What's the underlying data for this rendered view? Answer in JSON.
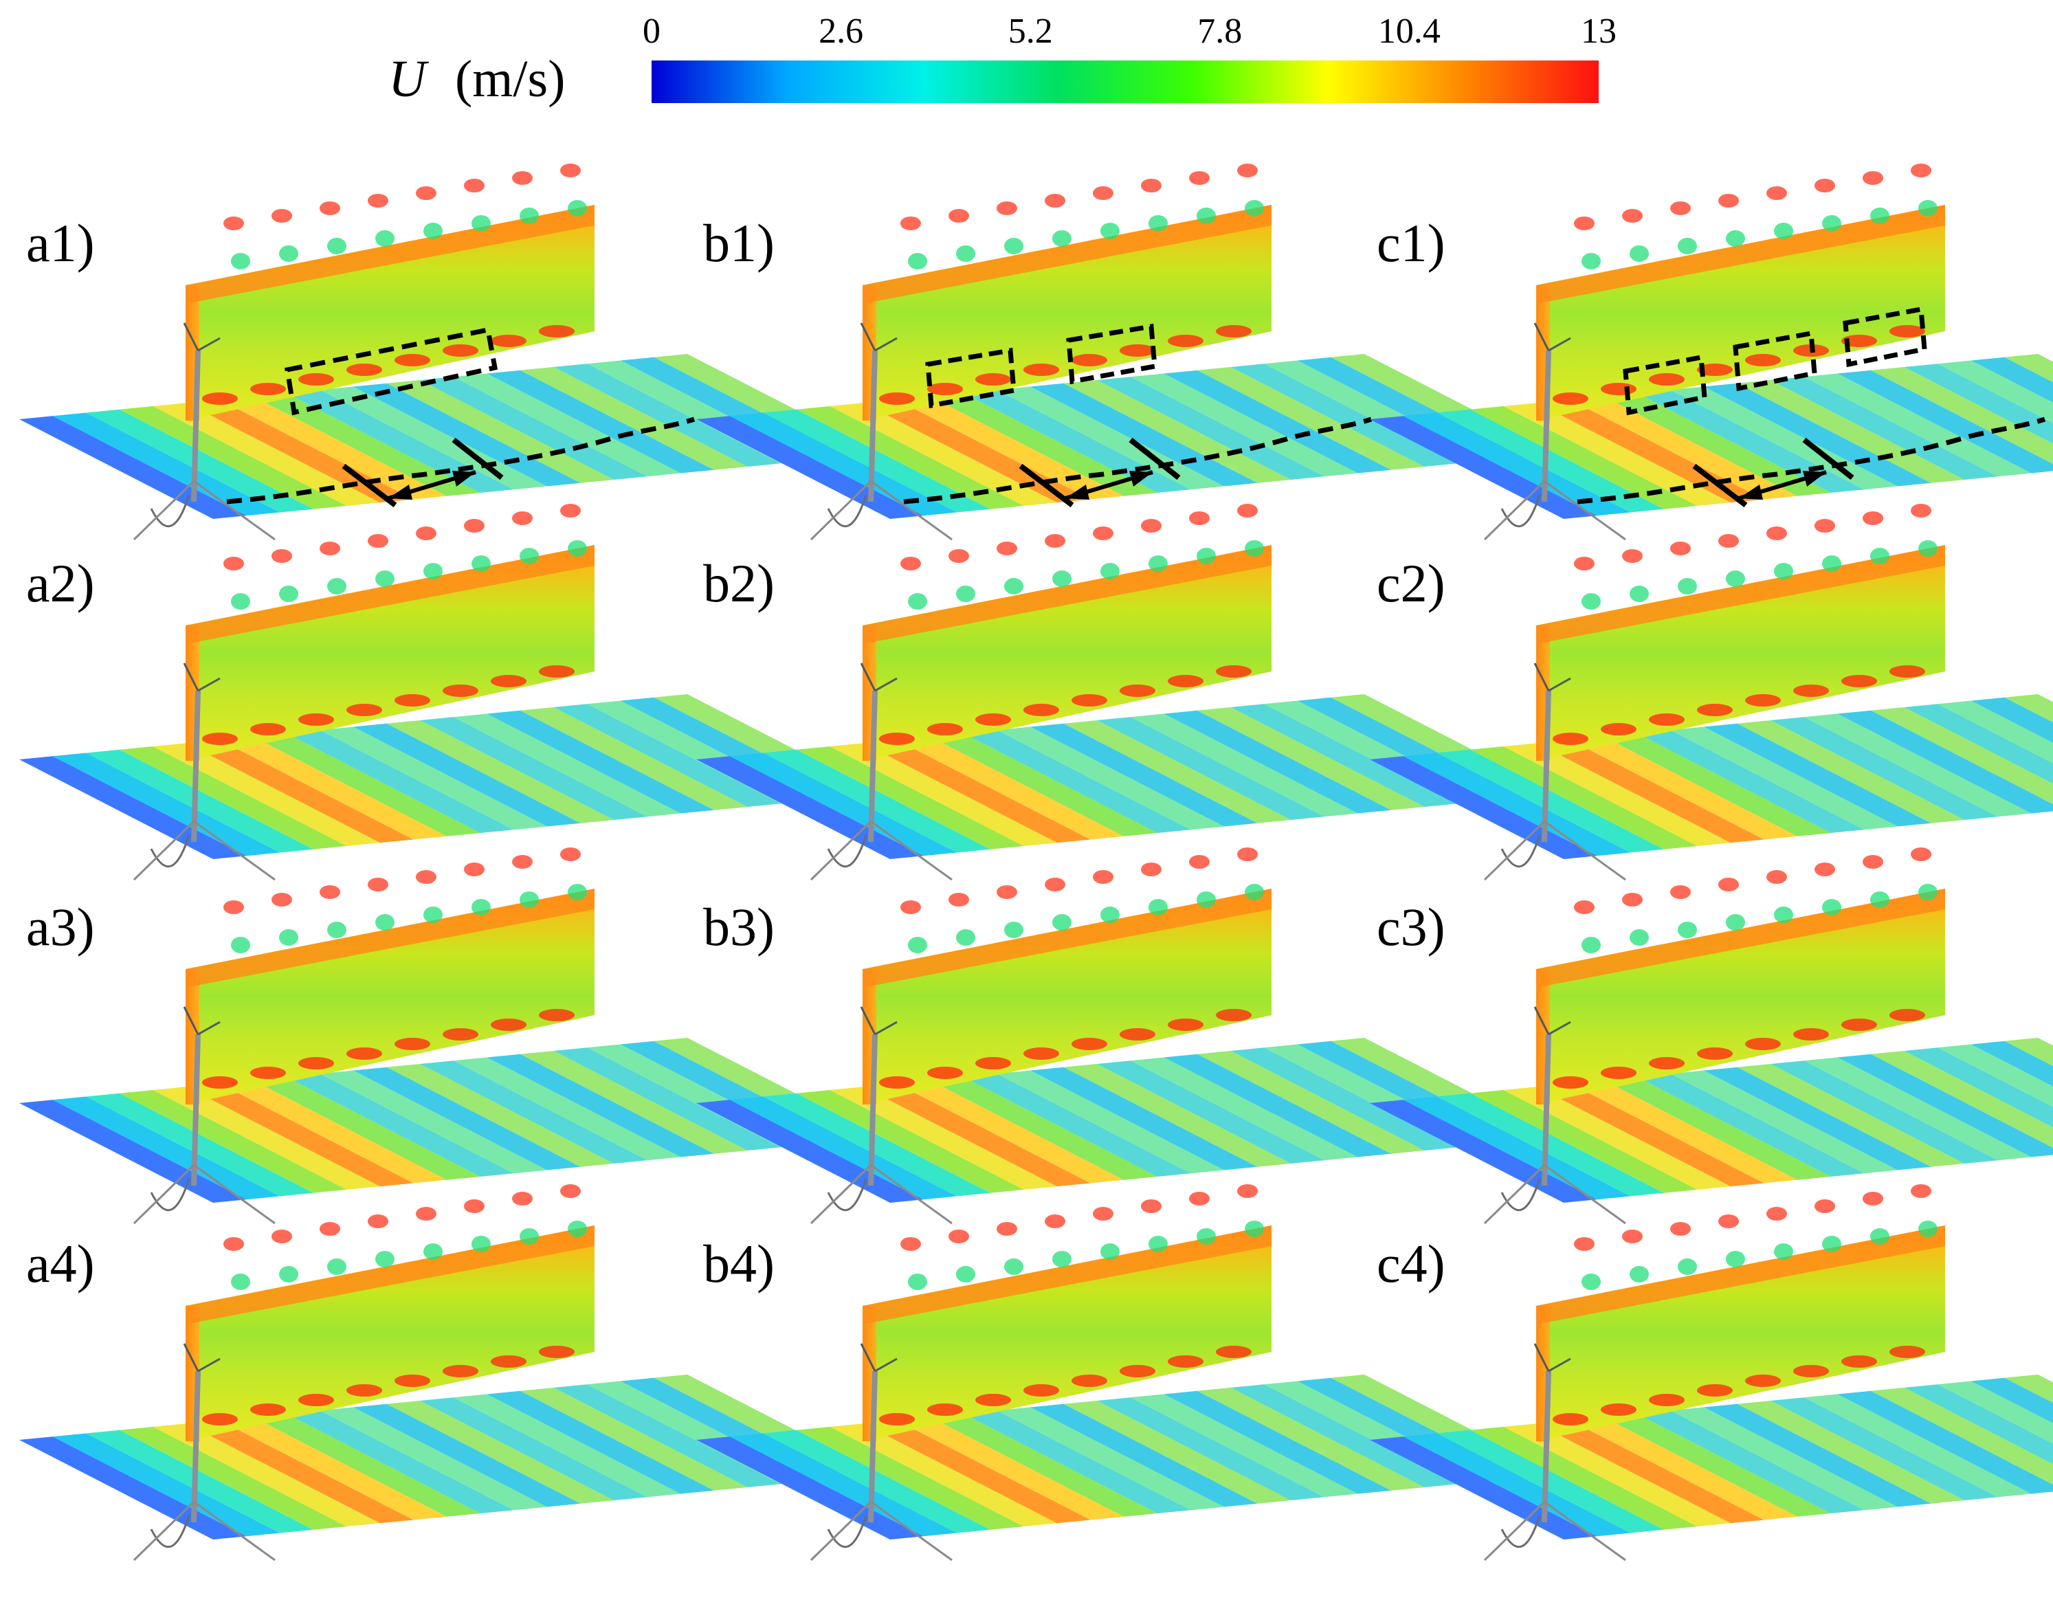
{
  "colorbar": {
    "variable": "U",
    "unit": "(m/s)",
    "ticks": [
      "0",
      "2.6",
      "5.2",
      "7.8",
      "10.4",
      "13"
    ],
    "colors": [
      "#0000d8",
      "#00a8ff",
      "#00f0e8",
      "#00e060",
      "#3cff00",
      "#ffff00",
      "#ff8800",
      "#ff1010"
    ]
  },
  "panels": [
    {
      "label": "a1)",
      "row": 0,
      "col": 0
    },
    {
      "label": "b1)",
      "row": 0,
      "col": 1
    },
    {
      "label": "c1)",
      "row": 0,
      "col": 2
    },
    {
      "label": "a2)",
      "row": 1,
      "col": 0
    },
    {
      "label": "b2)",
      "row": 1,
      "col": 1
    },
    {
      "label": "c2)",
      "row": 1,
      "col": 2
    },
    {
      "label": "a3)",
      "row": 2,
      "col": 0
    },
    {
      "label": "b3)",
      "row": 2,
      "col": 1
    },
    {
      "label": "c3)",
      "row": 2,
      "col": 2
    },
    {
      "label": "a4)",
      "row": 3,
      "col": 0
    },
    {
      "label": "b4)",
      "row": 3,
      "col": 1
    },
    {
      "label": "c4)",
      "row": 3,
      "col": 2
    }
  ],
  "annotations": {
    "dashed_boxes_per_panel": {
      "a1)": 1,
      "b1)": 2,
      "c1)": 3
    },
    "wavelength_arrow_panels": [
      "a1)",
      "b1)",
      "c1)"
    ]
  }
}
